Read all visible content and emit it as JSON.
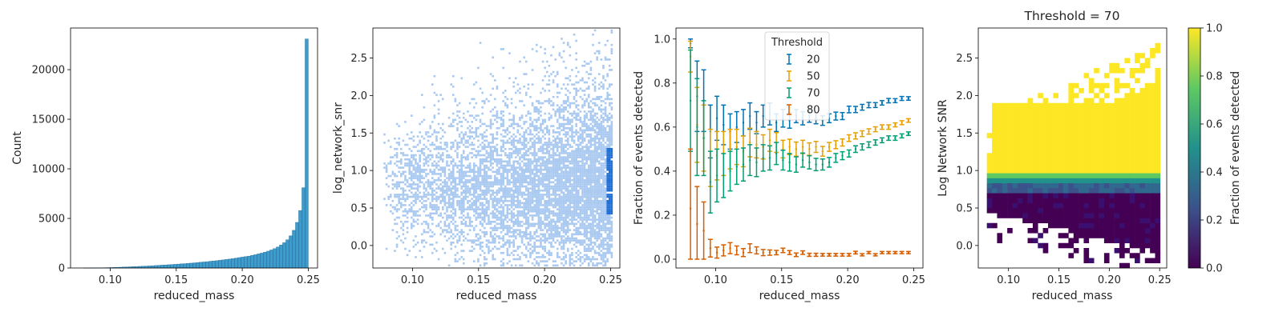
{
  "chart_data": [
    {
      "type": "bar",
      "title": "",
      "xlabel": "reduced_mass",
      "ylabel": "Count",
      "xlim": [
        0.07,
        0.257
      ],
      "ylim": [
        0,
        24200
      ],
      "x_ticks": [
        "0.10",
        "0.15",
        "0.20",
        "0.25"
      ],
      "y_ticks": [
        "0",
        "5000",
        "10000",
        "15000",
        "20000"
      ],
      "bar_color": "#3a9ccf",
      "bin_edges_range": [
        0.08,
        0.25
      ],
      "values": [
        5,
        5,
        10,
        10,
        20,
        25,
        30,
        40,
        45,
        60,
        70,
        80,
        95,
        110,
        120,
        140,
        150,
        165,
        180,
        195,
        210,
        230,
        250,
        270,
        290,
        310,
        330,
        350,
        370,
        395,
        420,
        440,
        470,
        490,
        520,
        550,
        580,
        610,
        640,
        680,
        710,
        740,
        780,
        820,
        860,
        900,
        950,
        1000,
        1050,
        1100,
        1150,
        1200,
        1270,
        1340,
        1420,
        1500,
        1600,
        1700,
        1820,
        1950,
        2120,
        2320,
        2550,
        2850,
        3250,
        3800,
        4600,
        5800,
        8100,
        23100
      ]
    },
    {
      "type": "heatmap",
      "title": "",
      "xlabel": "reduced_mass",
      "ylabel": "log_network_snr",
      "xlim": [
        0.07,
        0.257
      ],
      "ylim": [
        -0.3,
        2.9
      ],
      "x_ticks": [
        "0.10",
        "0.15",
        "0.20",
        "0.25"
      ],
      "y_ticks": [
        "0.0",
        "0.5",
        "1.0",
        "1.5",
        "2.0",
        "2.5"
      ],
      "color": "#a9c9f0",
      "dense_color": "#1f6fd6"
    },
    {
      "type": "scatter",
      "title": "",
      "xlabel": "reduced_mass",
      "ylabel": "Fraction of events detected",
      "xlim": [
        0.07,
        0.257
      ],
      "ylim": [
        -0.04,
        1.05
      ],
      "x_ticks": [
        "0.10",
        "0.15",
        "0.20",
        "0.25"
      ],
      "y_ticks": [
        "0.0",
        "0.2",
        "0.4",
        "0.6",
        "0.8",
        "1.0"
      ],
      "legend_title": "Threshold",
      "legend_position": "top-center",
      "x": [
        0.081,
        0.086,
        0.091,
        0.096,
        0.101,
        0.106,
        0.111,
        0.116,
        0.121,
        0.126,
        0.131,
        0.136,
        0.141,
        0.146,
        0.151,
        0.156,
        0.161,
        0.166,
        0.171,
        0.176,
        0.181,
        0.186,
        0.191,
        0.196,
        0.201,
        0.206,
        0.211,
        0.216,
        0.221,
        0.226,
        0.231,
        0.236,
        0.241,
        0.246
      ],
      "series": [
        {
          "name": "20",
          "color": "#0072b2",
          "values": [
            0.98,
            0.74,
            0.72,
            0.58,
            0.64,
            0.61,
            0.58,
            0.6,
            0.62,
            0.65,
            0.62,
            0.65,
            0.66,
            0.62,
            0.64,
            0.63,
            0.65,
            0.64,
            0.65,
            0.64,
            0.63,
            0.64,
            0.65,
            0.65,
            0.68,
            0.68,
            0.69,
            0.7,
            0.7,
            0.71,
            0.72,
            0.72,
            0.73,
            0.73
          ],
          "errors": [
            0.02,
            0.16,
            0.14,
            0.12,
            0.1,
            0.09,
            0.08,
            0.07,
            0.06,
            0.06,
            0.05,
            0.05,
            0.05,
            0.04,
            0.04,
            0.035,
            0.03,
            0.03,
            0.028,
            0.025,
            0.022,
            0.02,
            0.018,
            0.016,
            0.015,
            0.014,
            0.013,
            0.012,
            0.011,
            0.01,
            0.01,
            0.009,
            0.009,
            0.008
          ]
        },
        {
          "name": "50",
          "color": "#e69f00",
          "values": [
            0.92,
            0.61,
            0.55,
            0.46,
            0.47,
            0.48,
            0.5,
            0.51,
            0.49,
            0.53,
            0.52,
            0.51,
            0.54,
            0.53,
            0.5,
            0.51,
            0.5,
            0.51,
            0.5,
            0.51,
            0.49,
            0.51,
            0.52,
            0.53,
            0.55,
            0.56,
            0.57,
            0.58,
            0.59,
            0.6,
            0.6,
            0.61,
            0.62,
            0.63
          ],
          "errors": [
            0.07,
            0.17,
            0.15,
            0.13,
            0.11,
            0.1,
            0.09,
            0.08,
            0.07,
            0.065,
            0.06,
            0.055,
            0.05,
            0.045,
            0.04,
            0.035,
            0.032,
            0.03,
            0.028,
            0.025,
            0.022,
            0.02,
            0.018,
            0.016,
            0.015,
            0.014,
            0.013,
            0.012,
            0.011,
            0.01,
            0.01,
            0.009,
            0.009,
            0.008
          ]
        },
        {
          "name": "70",
          "color": "#009e73",
          "values": [
            0.72,
            0.6,
            0.55,
            0.35,
            0.38,
            0.38,
            0.4,
            0.42,
            0.43,
            0.45,
            0.44,
            0.46,
            0.46,
            0.48,
            0.45,
            0.44,
            0.43,
            0.45,
            0.44,
            0.43,
            0.43,
            0.44,
            0.46,
            0.47,
            0.48,
            0.5,
            0.51,
            0.52,
            0.53,
            0.54,
            0.55,
            0.55,
            0.56,
            0.57
          ],
          "errors": [
            0.23,
            0.22,
            0.17,
            0.14,
            0.12,
            0.1,
            0.09,
            0.08,
            0.075,
            0.07,
            0.065,
            0.06,
            0.055,
            0.05,
            0.045,
            0.04,
            0.035,
            0.032,
            0.03,
            0.028,
            0.025,
            0.022,
            0.02,
            0.018,
            0.016,
            0.015,
            0.014,
            0.013,
            0.012,
            0.011,
            0.01,
            0.01,
            0.009,
            0.008
          ]
        },
        {
          "name": "80",
          "color": "#d55e00",
          "values": [
            0.23,
            0.16,
            0.13,
            0.05,
            0.03,
            0.04,
            0.05,
            0.04,
            0.03,
            0.05,
            0.04,
            0.03,
            0.03,
            0.03,
            0.04,
            0.03,
            0.02,
            0.03,
            0.02,
            0.02,
            0.02,
            0.02,
            0.02,
            0.02,
            0.02,
            0.03,
            0.02,
            0.03,
            0.02,
            0.03,
            0.03,
            0.03,
            0.03,
            0.03
          ],
          "errors": [
            0.27,
            0.17,
            0.13,
            0.04,
            0.025,
            0.025,
            0.025,
            0.02,
            0.018,
            0.02,
            0.016,
            0.014,
            0.012,
            0.01,
            0.01,
            0.009,
            0.008,
            0.008,
            0.007,
            0.007,
            0.006,
            0.006,
            0.006,
            0.006,
            0.006,
            0.006,
            0.005,
            0.005,
            0.005,
            0.005,
            0.005,
            0.005,
            0.005,
            0.005
          ]
        }
      ]
    },
    {
      "type": "heatmap",
      "title": "Threshold = 70",
      "xlabel": "reduced_mass",
      "ylabel": "Log Network SNR",
      "xlim": [
        0.07,
        0.257
      ],
      "ylim": [
        -0.3,
        2.9
      ],
      "x_ticks": [
        "0.10",
        "0.15",
        "0.20",
        "0.25"
      ],
      "y_ticks": [
        "0.0",
        "0.5",
        "1.0",
        "1.5",
        "2.0",
        "2.5"
      ],
      "colorbar_label": "Fraction of events detected",
      "colorbar_ticks": [
        "0.0",
        "0.2",
        "0.4",
        "0.6",
        "0.8",
        "1.0"
      ],
      "colormap": [
        "#440154",
        "#3b528b",
        "#21918c",
        "#5ec962",
        "#fde725"
      ]
    }
  ]
}
